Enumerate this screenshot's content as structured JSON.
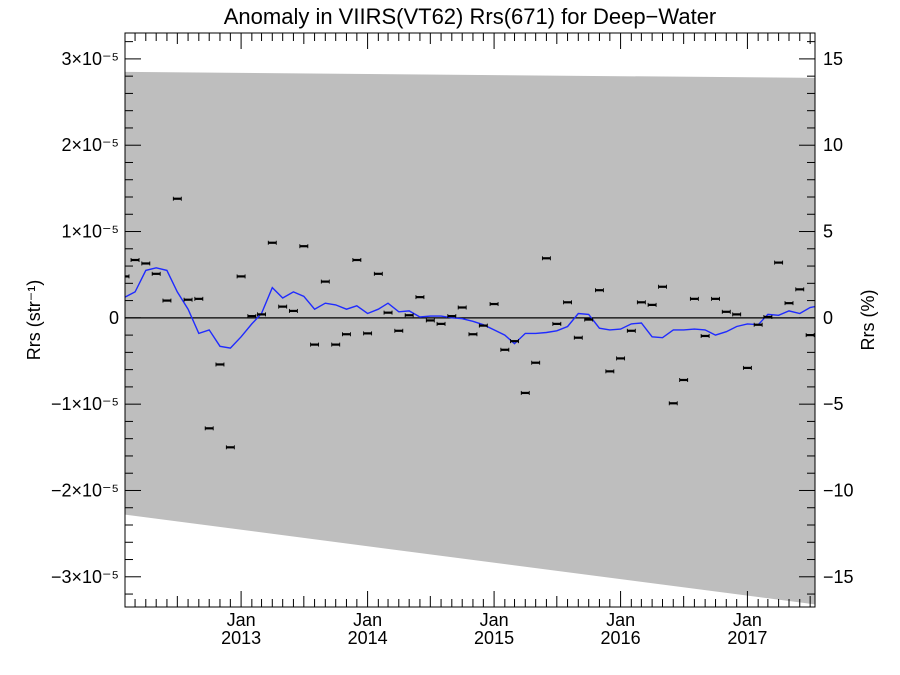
{
  "chart_data": {
    "type": "scatter",
    "title": "Anomaly in VIIRS(VT62) Rrs(671) for Deep−Water",
    "ylabel": "Rrs (str⁻¹)",
    "y2label": "Rrs (%)",
    "xlim": [
      "2012-02-01",
      "2017-07-15"
    ],
    "ylim": [
      -3.35e-05,
      3.3e-05
    ],
    "y2lim": [
      -16.75,
      16.5
    ],
    "yticks": [
      {
        "value": -3e-05,
        "label": "−3×10⁻⁵"
      },
      {
        "value": -2e-05,
        "label": "−2×10⁻⁵"
      },
      {
        "value": -1e-05,
        "label": "−1×10⁻⁵"
      },
      {
        "value": 0,
        "label": "0"
      },
      {
        "value": 1e-05,
        "label": "1×10⁻⁵"
      },
      {
        "value": 2e-05,
        "label": "2×10⁻⁵"
      },
      {
        "value": 3e-05,
        "label": "3×10⁻⁵"
      }
    ],
    "y2ticks": [
      {
        "value": -15,
        "label": "−15"
      },
      {
        "value": -10,
        "label": "−10"
      },
      {
        "value": -5,
        "label": "−5"
      },
      {
        "value": 0,
        "label": "0"
      },
      {
        "value": 5,
        "label": "5"
      },
      {
        "value": 10,
        "label": "10"
      },
      {
        "value": 15,
        "label": "15"
      }
    ],
    "xticks": [
      {
        "date": "2013-01-01",
        "month": "Jan",
        "year": "2013"
      },
      {
        "date": "2014-01-01",
        "month": "Jan",
        "year": "2014"
      },
      {
        "date": "2015-01-01",
        "month": "Jan",
        "year": "2015"
      },
      {
        "date": "2016-01-01",
        "month": "Jan",
        "year": "2016"
      },
      {
        "date": "2017-01-01",
        "month": "Jan",
        "year": "2017"
      }
    ],
    "grid": false,
    "legend": "none",
    "zero_line": 0,
    "uncertainty_band": {
      "color": "#bebebe",
      "upper": [
        {
          "date": "2012-02-01",
          "y": 2.85e-05
        },
        {
          "date": "2017-07-15",
          "y": 2.78e-05
        }
      ],
      "lower": [
        {
          "date": "2012-02-01",
          "y": -2.28e-05
        },
        {
          "date": "2017-07-15",
          "y": -3.32e-05
        }
      ]
    },
    "series": [
      {
        "type": "scatter",
        "marker": "errorbar",
        "color": "#000000",
        "points": [
          {
            "date": "2012-02-01",
            "y": 4.8e-06
          },
          {
            "date": "2012-03-01",
            "y": 6.7e-06
          },
          {
            "date": "2012-04-01",
            "y": 6.3e-06
          },
          {
            "date": "2012-05-01",
            "y": 5.1e-06
          },
          {
            "date": "2012-06-01",
            "y": 2e-06
          },
          {
            "date": "2012-07-01",
            "y": 1.38e-05
          },
          {
            "date": "2012-08-01",
            "y": 2.1e-06
          },
          {
            "date": "2012-09-01",
            "y": 2.2e-06
          },
          {
            "date": "2012-10-01",
            "y": -1.28e-05
          },
          {
            "date": "2012-11-01",
            "y": -5.4e-06
          },
          {
            "date": "2012-12-01",
            "y": -1.5e-05
          },
          {
            "date": "2013-01-01",
            "y": 4.8e-06
          },
          {
            "date": "2013-02-01",
            "y": 2e-07
          },
          {
            "date": "2013-03-01",
            "y": 4e-07
          },
          {
            "date": "2013-04-01",
            "y": 8.7e-06
          },
          {
            "date": "2013-05-01",
            "y": 1.3e-06
          },
          {
            "date": "2013-06-01",
            "y": 8e-07
          },
          {
            "date": "2013-07-01",
            "y": 8.3e-06
          },
          {
            "date": "2013-08-01",
            "y": -3.1e-06
          },
          {
            "date": "2013-09-01",
            "y": 4.2e-06
          },
          {
            "date": "2013-10-01",
            "y": -3.1e-06
          },
          {
            "date": "2013-11-01",
            "y": -1.9e-06
          },
          {
            "date": "2013-12-01",
            "y": 6.7e-06
          },
          {
            "date": "2014-01-01",
            "y": -1.8e-06
          },
          {
            "date": "2014-02-01",
            "y": 5.1e-06
          },
          {
            "date": "2014-03-01",
            "y": 6e-07
          },
          {
            "date": "2014-04-01",
            "y": -1.5e-06
          },
          {
            "date": "2014-05-01",
            "y": 3e-07
          },
          {
            "date": "2014-06-01",
            "y": 2.4e-06
          },
          {
            "date": "2014-07-01",
            "y": -3e-07
          },
          {
            "date": "2014-08-01",
            "y": -7e-07
          },
          {
            "date": "2014-09-01",
            "y": 2e-07
          },
          {
            "date": "2014-10-01",
            "y": 1.2e-06
          },
          {
            "date": "2014-11-01",
            "y": -1.9e-06
          },
          {
            "date": "2014-12-01",
            "y": -9e-07
          },
          {
            "date": "2015-01-01",
            "y": 1.6e-06
          },
          {
            "date": "2015-02-01",
            "y": -3.7e-06
          },
          {
            "date": "2015-03-01",
            "y": -2.7e-06
          },
          {
            "date": "2015-04-01",
            "y": -8.7e-06
          },
          {
            "date": "2015-05-01",
            "y": -5.2e-06
          },
          {
            "date": "2015-06-01",
            "y": 6.9e-06
          },
          {
            "date": "2015-07-01",
            "y": -7e-07
          },
          {
            "date": "2015-08-01",
            "y": 1.8e-06
          },
          {
            "date": "2015-09-01",
            "y": -2.3e-06
          },
          {
            "date": "2015-10-01",
            "y": -2e-07
          },
          {
            "date": "2015-11-01",
            "y": 3.2e-06
          },
          {
            "date": "2015-12-01",
            "y": -6.2e-06
          },
          {
            "date": "2016-01-01",
            "y": -4.7e-06
          },
          {
            "date": "2016-02-01",
            "y": -1.5e-06
          },
          {
            "date": "2016-03-01",
            "y": 1.8e-06
          },
          {
            "date": "2016-04-01",
            "y": 1.5e-06
          },
          {
            "date": "2016-05-01",
            "y": 3.6e-06
          },
          {
            "date": "2016-06-01",
            "y": -9.9e-06
          },
          {
            "date": "2016-07-01",
            "y": -7.2e-06
          },
          {
            "date": "2016-08-01",
            "y": 2.2e-06
          },
          {
            "date": "2016-09-01",
            "y": -2.1e-06
          },
          {
            "date": "2016-10-01",
            "y": 2.2e-06
          },
          {
            "date": "2016-11-01",
            "y": 7e-07
          },
          {
            "date": "2016-12-01",
            "y": 4e-07
          },
          {
            "date": "2017-01-01",
            "y": -5.8e-06
          },
          {
            "date": "2017-02-01",
            "y": -8e-07
          },
          {
            "date": "2017-03-01",
            "y": 1e-07
          },
          {
            "date": "2017-04-01",
            "y": 6.4e-06
          },
          {
            "date": "2017-05-01",
            "y": 1.7e-06
          },
          {
            "date": "2017-06-01",
            "y": 3.3e-06
          },
          {
            "date": "2017-07-01",
            "y": -2e-06
          }
        ]
      },
      {
        "type": "line",
        "color": "#1f2bff",
        "points": [
          {
            "date": "2012-02-01",
            "y": 2.4e-06
          },
          {
            "date": "2012-03-01",
            "y": 3e-06
          },
          {
            "date": "2012-04-01",
            "y": 5.5e-06
          },
          {
            "date": "2012-05-01",
            "y": 5.8e-06
          },
          {
            "date": "2012-06-01",
            "y": 5.5e-06
          },
          {
            "date": "2012-07-01",
            "y": 3e-06
          },
          {
            "date": "2012-08-01",
            "y": 1e-06
          },
          {
            "date": "2012-09-01",
            "y": -1.8e-06
          },
          {
            "date": "2012-10-01",
            "y": -1.4e-06
          },
          {
            "date": "2012-11-01",
            "y": -3.3e-06
          },
          {
            "date": "2012-12-01",
            "y": -3.5e-06
          },
          {
            "date": "2013-01-01",
            "y": -2.2e-06
          },
          {
            "date": "2013-02-01",
            "y": -7e-07
          },
          {
            "date": "2013-03-01",
            "y": 5e-07
          },
          {
            "date": "2013-04-01",
            "y": 3.5e-06
          },
          {
            "date": "2013-05-01",
            "y": 2.3e-06
          },
          {
            "date": "2013-06-01",
            "y": 3e-06
          },
          {
            "date": "2013-07-01",
            "y": 2.5e-06
          },
          {
            "date": "2013-08-01",
            "y": 1e-06
          },
          {
            "date": "2013-09-01",
            "y": 1.7e-06
          },
          {
            "date": "2013-10-01",
            "y": 1.5e-06
          },
          {
            "date": "2013-11-01",
            "y": 1e-06
          },
          {
            "date": "2013-12-01",
            "y": 1.4e-06
          },
          {
            "date": "2014-01-01",
            "y": 5e-07
          },
          {
            "date": "2014-02-01",
            "y": 1e-06
          },
          {
            "date": "2014-03-01",
            "y": 1.7e-06
          },
          {
            "date": "2014-04-01",
            "y": 7e-07
          },
          {
            "date": "2014-05-01",
            "y": 8e-07
          },
          {
            "date": "2014-06-01",
            "y": 1e-07
          },
          {
            "date": "2014-07-01",
            "y": 2e-07
          },
          {
            "date": "2014-08-01",
            "y": 2e-07
          },
          {
            "date": "2014-09-01",
            "y": 0.0
          },
          {
            "date": "2014-10-01",
            "y": -1e-07
          },
          {
            "date": "2014-11-01",
            "y": -4e-07
          },
          {
            "date": "2014-12-01",
            "y": -8e-07
          },
          {
            "date": "2015-01-01",
            "y": -1.4e-06
          },
          {
            "date": "2015-02-01",
            "y": -2e-06
          },
          {
            "date": "2015-03-01",
            "y": -3e-06
          },
          {
            "date": "2015-04-01",
            "y": -1.8e-06
          },
          {
            "date": "2015-05-01",
            "y": -1.8e-06
          },
          {
            "date": "2015-06-01",
            "y": -1.7e-06
          },
          {
            "date": "2015-07-01",
            "y": -1.5e-06
          },
          {
            "date": "2015-08-01",
            "y": -1e-06
          },
          {
            "date": "2015-09-01",
            "y": 5e-07
          },
          {
            "date": "2015-10-01",
            "y": 4e-07
          },
          {
            "date": "2015-11-01",
            "y": -1.2e-06
          },
          {
            "date": "2015-12-01",
            "y": -1.4e-06
          },
          {
            "date": "2016-01-01",
            "y": -1.3e-06
          },
          {
            "date": "2016-02-01",
            "y": -7e-07
          },
          {
            "date": "2016-03-01",
            "y": -6e-07
          },
          {
            "date": "2016-04-01",
            "y": -2.2e-06
          },
          {
            "date": "2016-05-01",
            "y": -2.3e-06
          },
          {
            "date": "2016-06-01",
            "y": -1.4e-06
          },
          {
            "date": "2016-07-01",
            "y": -1.4e-06
          },
          {
            "date": "2016-08-01",
            "y": -1.3e-06
          },
          {
            "date": "2016-09-01",
            "y": -1.4e-06
          },
          {
            "date": "2016-10-01",
            "y": -2e-06
          },
          {
            "date": "2016-11-01",
            "y": -1.6e-06
          },
          {
            "date": "2016-12-01",
            "y": -1e-06
          },
          {
            "date": "2017-01-01",
            "y": -7e-07
          },
          {
            "date": "2017-02-01",
            "y": -8e-07
          },
          {
            "date": "2017-03-01",
            "y": 4e-07
          },
          {
            "date": "2017-04-01",
            "y": 3e-07
          },
          {
            "date": "2017-05-01",
            "y": 8e-07
          },
          {
            "date": "2017-06-01",
            "y": 5e-07
          },
          {
            "date": "2017-07-01",
            "y": 1.2e-06
          },
          {
            "date": "2017-07-15",
            "y": 1.3e-06
          }
        ]
      }
    ]
  }
}
